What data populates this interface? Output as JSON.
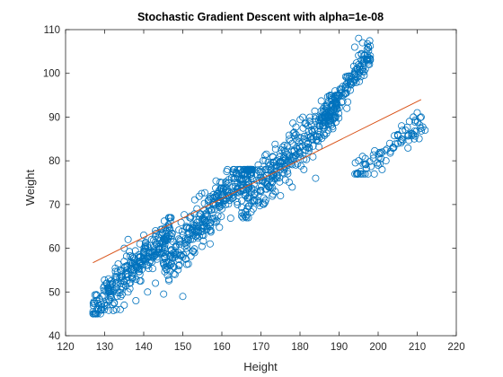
{
  "chart_data": {
    "type": "scatter",
    "title": "Stochastic Gradient Descent with alpha=1e-08",
    "xlabel": "Height",
    "ylabel": "Weight",
    "xlim": [
      120,
      220
    ],
    "ylim": [
      40,
      110
    ],
    "xticks": [
      120,
      130,
      140,
      150,
      160,
      170,
      180,
      190,
      200,
      210,
      220
    ],
    "yticks": [
      40,
      50,
      60,
      70,
      80,
      90,
      100,
      110
    ],
    "grid": false,
    "legend": "none",
    "colors": {
      "points": "#0072bd",
      "fit_line": "#d95319",
      "axes": "#262626"
    },
    "clusters": [
      {
        "x_range": [
          127,
          147
        ],
        "y_range": [
          45,
          67
        ],
        "center": [
          137,
          55
        ]
      },
      {
        "x_range": [
          145,
          168
        ],
        "y_range": [
          49,
          78
        ],
        "center": [
          156,
          67
        ]
      },
      {
        "x_range": [
          165,
          190
        ],
        "y_range": [
          67,
          95
        ],
        "center": [
          178,
          82
        ]
      },
      {
        "x_range": [
          185,
          198
        ],
        "y_range": [
          88,
          108
        ],
        "center": [
          192,
          97
        ]
      },
      {
        "x_range": [
          194,
          212
        ],
        "y_range": [
          77,
          92
        ],
        "center": [
          205,
          84
        ]
      }
    ],
    "series": [
      {
        "type": "line",
        "x": [
          127,
          211
        ],
        "y": [
          56.7,
          94
        ]
      },
      {
        "type": "scatter",
        "marker": "open-circle",
        "x": [
          127,
          128,
          130,
          131,
          132,
          133,
          134,
          135,
          135,
          136,
          137,
          138,
          139,
          140,
          140,
          141,
          142,
          143,
          144,
          145,
          146,
          147,
          131,
          133,
          136,
          138,
          141,
          143,
          139,
          137,
          135,
          134,
          148,
          149,
          150,
          151,
          152,
          153,
          154,
          155,
          156,
          157,
          158,
          159,
          160,
          161,
          162,
          163,
          164,
          165,
          166,
          167,
          152,
          155,
          158,
          161,
          164,
          150,
          153,
          157,
          160,
          168,
          169,
          170,
          171,
          172,
          173,
          174,
          175,
          176,
          177,
          178,
          179,
          180,
          181,
          182,
          183,
          184,
          185,
          186,
          187,
          175,
          178,
          181,
          184,
          180,
          177,
          182,
          185,
          188,
          189,
          190,
          191,
          192,
          193,
          194,
          195,
          196,
          197,
          198,
          194,
          195,
          196,
          192,
          195,
          196,
          199,
          200,
          201,
          202,
          203,
          204,
          205,
          206,
          207,
          208,
          209,
          210,
          211,
          212,
          201,
          206,
          209
        ],
        "y": [
          45.5,
          48,
          47,
          50,
          52,
          51,
          55,
          57,
          60,
          62,
          58,
          56,
          61,
          63,
          59,
          58,
          62,
          64,
          60,
          59,
          62,
          67,
          53,
          46,
          50,
          48,
          50,
          52,
          54,
          53,
          47,
          46,
          54,
          56,
          58,
          60,
          62,
          59,
          64,
          66,
          68,
          65,
          70,
          72,
          69,
          74,
          71,
          73,
          75,
          76,
          72,
          74,
          67,
          63,
          66,
          70,
          70,
          49,
          64,
          61,
          75,
          69,
          71,
          73,
          75,
          74,
          77,
          79,
          78,
          80,
          82,
          84,
          86,
          83,
          85,
          88,
          87,
          89,
          90,
          92,
          91,
          72,
          74,
          78,
          76,
          81,
          80,
          84,
          86,
          94,
          96,
          95,
          97,
          99,
          98,
          100,
          102,
          101,
          103,
          104,
          106,
          108,
          107,
          92,
          80,
          81,
          77,
          79,
          82,
          80,
          84,
          83,
          86,
          88,
          87,
          89,
          90,
          91,
          90,
          87,
          78,
          85,
          86
        ]
      }
    ]
  }
}
